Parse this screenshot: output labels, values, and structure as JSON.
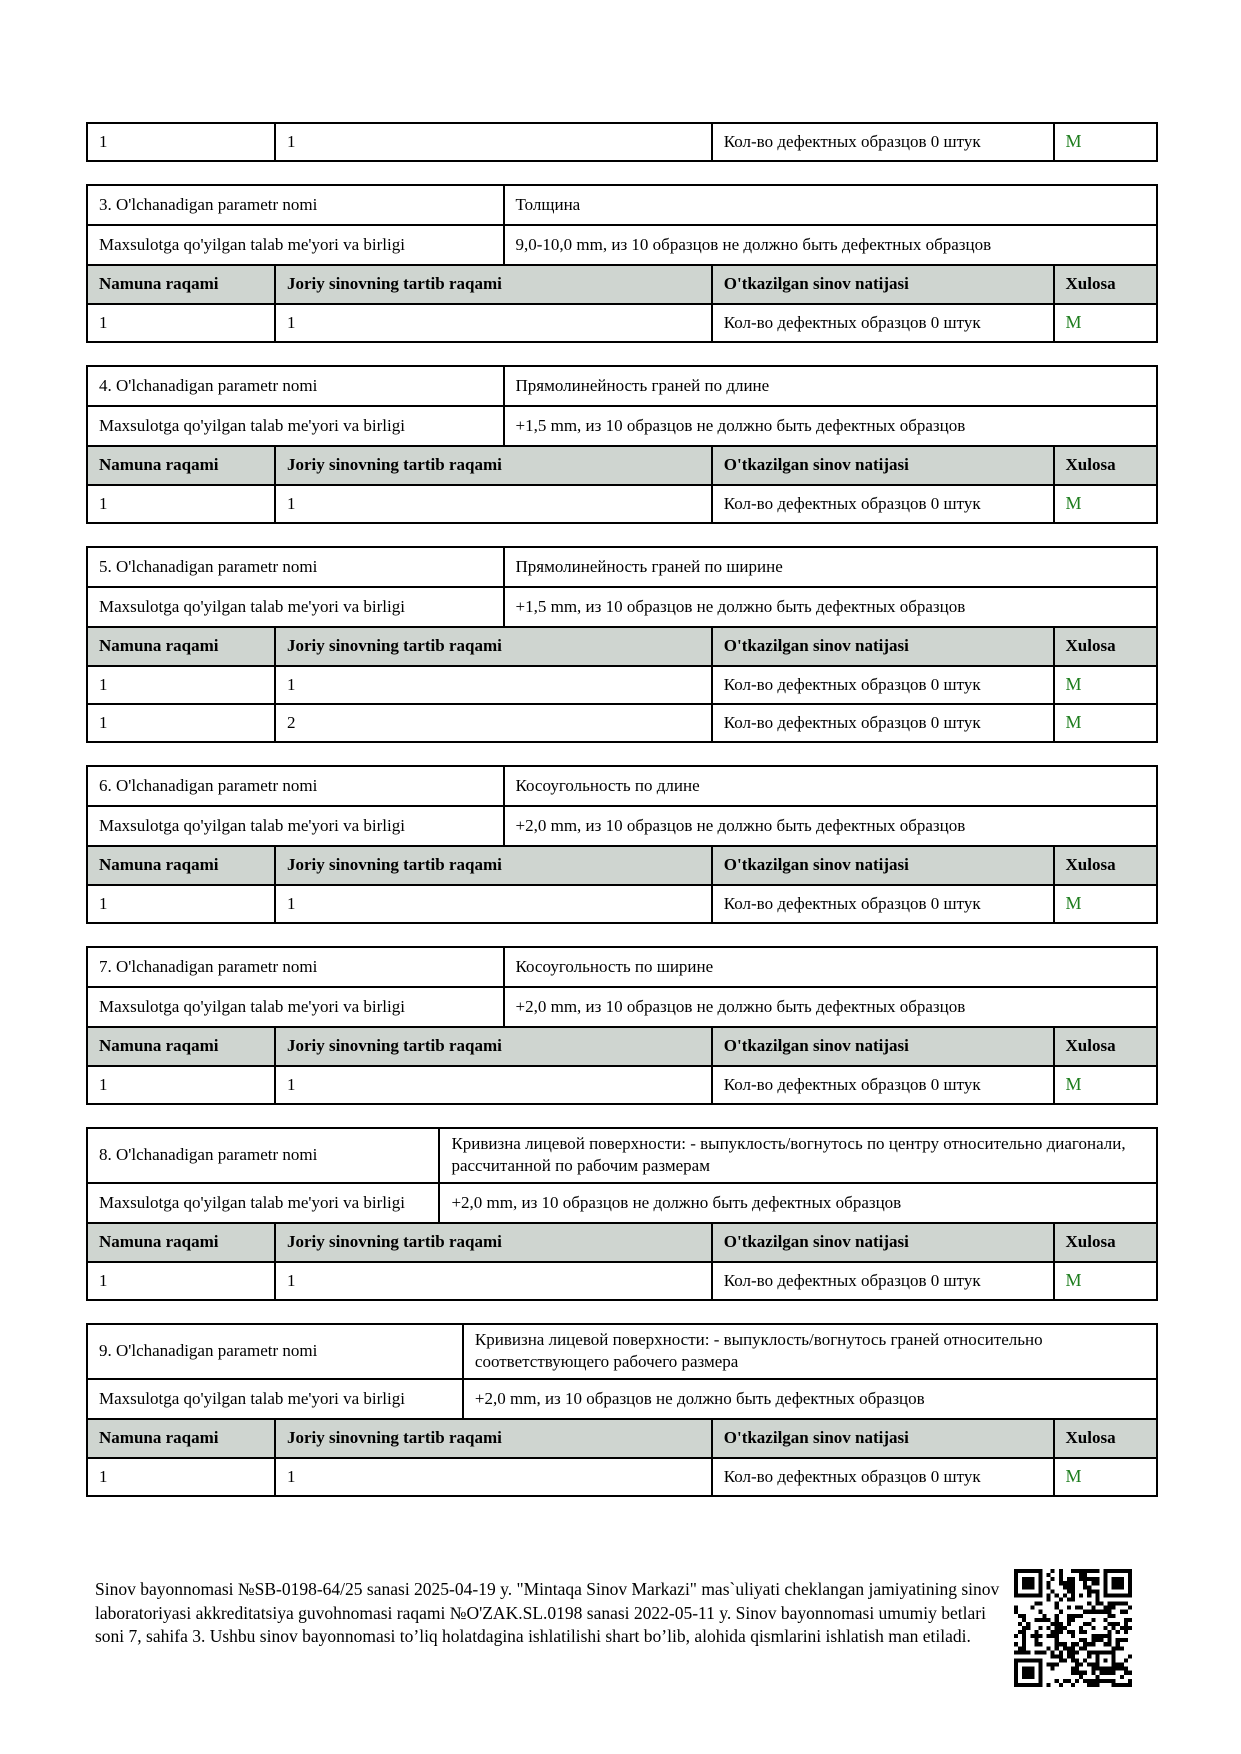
{
  "colors": {
    "header_bg": "#cfd5d0",
    "pass_green": "#1e7d1e"
  },
  "table_headers": {
    "namuna": "Namuna raqami",
    "joriy": "Joriy sinovning tartib raqami",
    "natija": "O'tkazilgan sinov natijasi",
    "xulosa": "Xulosa"
  },
  "top_row": {
    "namuna": "1",
    "joriy": "1",
    "natija": "Кол-во дефектных образцов 0 штук",
    "xulosa": "M"
  },
  "sections": [
    {
      "param_label": "3. O'lchanadigan parametr nomi",
      "param_value": "Толщина",
      "req_label": "Maxsulotga qo'yilgan talab me'yori va birligi",
      "req_value": "9,0-10,0 mm, из 10 образцов не должно быть дефектных образцов",
      "rows": [
        {
          "namuna": "1",
          "joriy": "1",
          "natija": "Кол-во дефектных образцов 0 штук",
          "xulosa": "M"
        }
      ]
    },
    {
      "param_label": "4. O'lchanadigan parametr nomi",
      "param_value": "Прямолинейность граней по длине",
      "req_label": "Maxsulotga qo'yilgan talab me'yori va birligi",
      "req_value": "+1,5 mm, из 10 образцов не должно быть дефектных образцов",
      "rows": [
        {
          "namuna": "1",
          "joriy": "1",
          "natija": "Кол-во дефектных образцов 0 штук",
          "xulosa": "M"
        }
      ]
    },
    {
      "param_label": "5. O'lchanadigan parametr nomi",
      "param_value": "Прямолинейность граней по ширине",
      "req_label": "Maxsulotga qo'yilgan talab me'yori va birligi",
      "req_value": "+1,5 mm, из 10 образцов не должно быть дефектных образцов",
      "rows": [
        {
          "namuna": "1",
          "joriy": "1",
          "natija": "Кол-во дефектных образцов 0 штук",
          "xulosa": "M"
        },
        {
          "namuna": "1",
          "joriy": "2",
          "natija": "Кол-во дефектных образцов 0 штук",
          "xulosa": "M"
        }
      ]
    },
    {
      "param_label": "6. O'lchanadigan parametr nomi",
      "param_value": "Косоугольность по длине",
      "req_label": "Maxsulotga qo'yilgan talab me'yori va birligi",
      "req_value": "+2,0 mm, из 10 образцов не должно быть дефектных образцов",
      "rows": [
        {
          "namuna": "1",
          "joriy": "1",
          "natija": "Кол-во дефектных образцов 0 штук",
          "xulosa": "M"
        }
      ]
    },
    {
      "param_label": "7. O'lchanadigan parametr nomi",
      "param_value": "Косоугольность по ширине",
      "req_label": "Maxsulotga qo'yilgan talab me'yori va birligi",
      "req_value": "+2,0 mm, из 10 образцов не должно быть дефектных образцов",
      "rows": [
        {
          "namuna": "1",
          "joriy": "1",
          "natija": "Кол-во дефектных образцов 0 штук",
          "xulosa": "M"
        }
      ]
    },
    {
      "param_label": "8. O'lchanadigan parametr nomi",
      "param_value": "Кривизна лицевой поверхности: - выпуклость/вогнутось по центру относительно диагонали, рассчитанной по рабочим размерам",
      "req_label": "Maxsulotga qo'yilgan talab me'yori va birligi",
      "req_value": "+2,0 mm, из 10 образцов не должно быть дефектных образцов",
      "rows": [
        {
          "namuna": "1",
          "joriy": "1",
          "natija": "Кол-во дефектных образцов 0 штук",
          "xulosa": "M"
        }
      ]
    },
    {
      "param_label": "9. O'lchanadigan parametr nomi",
      "param_value": "Кривизна лицевой поверхности: - выпуклость/вогнутось граней относительно соответствующего рабочего размера",
      "req_label": "Maxsulotga qo'yilgan talab me'yori va birligi",
      "req_value": "+2,0 mm, из 10 образцов не должно быть дефектных образцов",
      "rows": [
        {
          "namuna": "1",
          "joriy": "1",
          "natija": "Кол-во дефектных образцов 0 штук",
          "xulosa": "M"
        }
      ]
    }
  ],
  "footer": {
    "text": "Sinov bayonnomasi №SB-0198-64/25 sanasi 2025-04-19 y. \"Mintaqa Sinov Markazi\" mas`uliyati cheklangan jamiyatining sinov laboratoriyasi akkreditatsiya guvohnomasi raqami №O'ZAK.SL.0198 sanasi 2022-05-11 y. Sinov bayonnomasi umumiy betlari soni 7, sahifa 3. Ushbu sinov bayonnomasi toʼliq holatdagina ishlatilishi shart boʼlib, alohida qismlarini ishlatish man etiladi."
  }
}
